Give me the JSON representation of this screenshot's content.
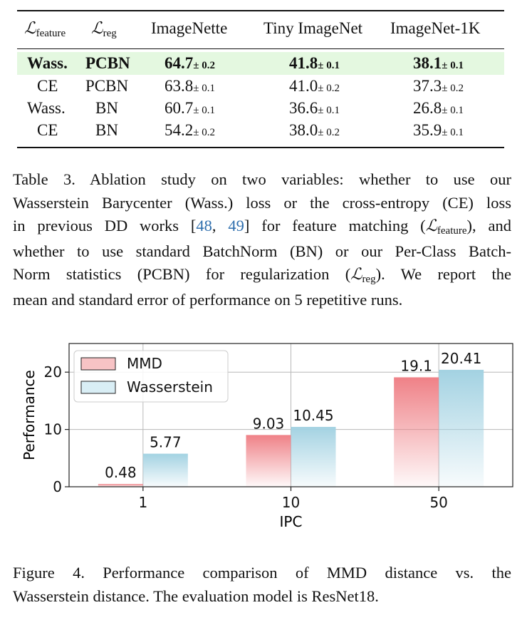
{
  "table": {
    "header": {
      "feature": {
        "sym": "ℒ",
        "sub": "feature"
      },
      "reg": {
        "sym": "ℒ",
        "sub": "reg"
      },
      "col1": "ImageNette",
      "col2": "Tiny ImageNet",
      "col3": "ImageNet-1K"
    },
    "rows": [
      {
        "feature": "Wass.",
        "reg": "PCBN",
        "c1": "64.7",
        "c1e": "± 0.2",
        "c2": "41.8",
        "c2e": "± 0.1",
        "c3": "38.1",
        "c3e": "± 0.1"
      },
      {
        "feature": "CE",
        "reg": "PCBN",
        "c1": "63.8",
        "c1e": "± 0.1",
        "c2": "41.0",
        "c2e": "± 0.2",
        "c3": "37.3",
        "c3e": "± 0.2"
      },
      {
        "feature": "Wass.",
        "reg": "BN",
        "c1": "60.7",
        "c1e": "± 0.1",
        "c2": "36.6",
        "c2e": "± 0.1",
        "c3": "26.8",
        "c3e": "± 0.1"
      },
      {
        "feature": "CE",
        "reg": "BN",
        "c1": "54.2",
        "c1e": "± 0.2",
        "c2": "38.0",
        "c2e": "± 0.2",
        "c3": "35.9",
        "c3e": "± 0.1"
      }
    ],
    "highlight_color": "#e4f8e0"
  },
  "caption3": {
    "l1": "Table 3.  Ablation study on two variables:  whether to use our",
    "l2": "Wasserstein Barycenter (Wass.) loss or the cross-entropy (CE) loss",
    "l3a": "in previous DD works [",
    "l3cite1": "48",
    "l3comma": ", ",
    "l3cite2": "49",
    "l3b": "] for feature matching (",
    "l3sym": "ℒ",
    "l3sub": "feature",
    "l3c": "), and",
    "l4": "whether to use standard BatchNorm (BN) or our Per-Class Batch-",
    "l5a": "Norm statistics (PCBN) for regularization (",
    "l5sym": "ℒ",
    "l5sub": "reg",
    "l5b": ").  We report the",
    "l6": "mean and standard error of performance on 5 repetitive runs."
  },
  "chart_data": {
    "type": "bar",
    "categories": [
      "1",
      "10",
      "50"
    ],
    "series": [
      {
        "name": "MMD",
        "values": [
          0.48,
          9.03,
          19.1
        ],
        "labels": [
          "0.48",
          "9.03",
          "19.1"
        ],
        "color": "#f08a8e"
      },
      {
        "name": "Wasserstein",
        "values": [
          5.77,
          10.45,
          20.41
        ],
        "labels": [
          "5.77",
          "10.45",
          "20.41"
        ],
        "color": "#a9d4e3"
      }
    ],
    "xlabel": "IPC",
    "ylabel": "Performance",
    "ylim": [
      0,
      25
    ],
    "yticks": [
      0,
      10,
      20
    ],
    "grid": true,
    "legend": "top-left"
  },
  "caption4": {
    "l1": "Figure 4.  Performance comparison of MMD distance vs.  the",
    "l2": "Wasserstein distance. The evaluation model is ResNet18."
  }
}
